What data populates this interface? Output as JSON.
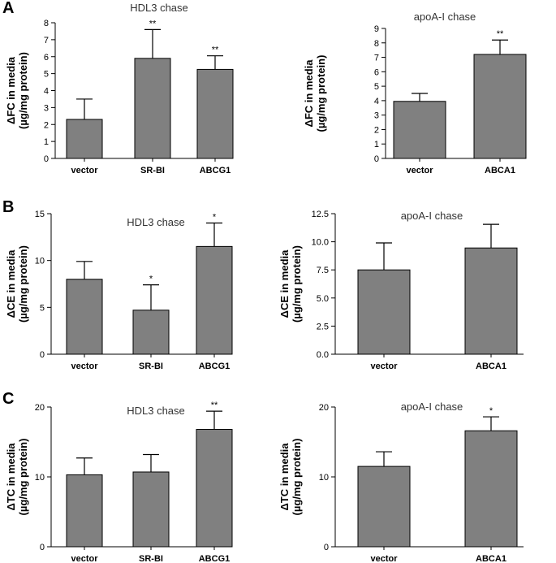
{
  "chart_data": [
    {
      "panel": "A",
      "type": "bar",
      "title": "HDL3 chase",
      "ylabel": [
        "ΔFC in media",
        "(µg/mg protein)"
      ],
      "ylim": [
        0,
        8
      ],
      "yticks": [
        "0",
        "1",
        "2",
        "3",
        "4",
        "5",
        "6",
        "7",
        "8"
      ],
      "categories": [
        "vector",
        "SR-BI",
        "ABCG1"
      ],
      "values": [
        2.3,
        5.9,
        5.25
      ],
      "errors": [
        1.2,
        1.7,
        0.8
      ],
      "significance": [
        "",
        "**",
        "**"
      ]
    },
    {
      "panel": "",
      "type": "bar",
      "title": "apoA-I chase",
      "ylabel": [
        "ΔFC in media",
        "(µg/mg protein)"
      ],
      "ylim": [
        0,
        9
      ],
      "yticks": [
        "0",
        "1",
        "2",
        "3",
        "4",
        "5",
        "6",
        "7",
        "8",
        "9"
      ],
      "categories": [
        "vector",
        "ABCA1"
      ],
      "values": [
        3.95,
        7.2
      ],
      "errors": [
        0.55,
        1.0
      ],
      "significance": [
        "",
        "**"
      ]
    },
    {
      "panel": "B",
      "type": "bar",
      "title": "HDL3 chase",
      "ylabel": [
        "ΔCE in media",
        "(µg/mg protein)"
      ],
      "ylim": [
        0,
        15
      ],
      "yticks": [
        "0",
        "5",
        "10",
        "15"
      ],
      "categories": [
        "vector",
        "SR-BI",
        "ABCG1"
      ],
      "values": [
        8.0,
        4.7,
        11.5
      ],
      "errors": [
        1.9,
        2.7,
        2.5
      ],
      "significance": [
        "",
        "*",
        "*"
      ]
    },
    {
      "panel": "",
      "type": "bar",
      "title": "apoA-I chase",
      "ylabel": [
        "ΔCE in media",
        "(µg/mg protein)"
      ],
      "ylim": [
        0,
        12.5
      ],
      "yticks": [
        "0.0",
        "2.5",
        "5.0",
        "7.5",
        "10.0",
        "12.5"
      ],
      "categories": [
        "vector",
        "ABCA1"
      ],
      "values": [
        7.5,
        9.45
      ],
      "errors": [
        2.4,
        2.1
      ],
      "significance": [
        "",
        ""
      ]
    },
    {
      "panel": "C",
      "type": "bar",
      "title": "HDL3 chase",
      "ylabel": [
        "ΔTC in media",
        "(µg/mg protein)"
      ],
      "ylim": [
        0,
        20
      ],
      "yticks": [
        "0",
        "10",
        "20"
      ],
      "categories": [
        "vector",
        "SR-BI",
        "ABCG1"
      ],
      "values": [
        10.3,
        10.7,
        16.8
      ],
      "errors": [
        2.4,
        2.5,
        2.6
      ],
      "significance": [
        "",
        "",
        "**"
      ]
    },
    {
      "panel": "",
      "type": "bar",
      "title": "apoA-I chase",
      "ylabel": [
        "ΔTC in media",
        "(µg/mg protein)"
      ],
      "ylim": [
        0,
        20
      ],
      "yticks": [
        "0",
        "10",
        "20"
      ],
      "categories": [
        "vector",
        "ABCA1"
      ],
      "values": [
        11.5,
        16.6
      ],
      "errors": [
        2.1,
        2.0
      ],
      "significance": [
        "",
        "*"
      ]
    }
  ]
}
